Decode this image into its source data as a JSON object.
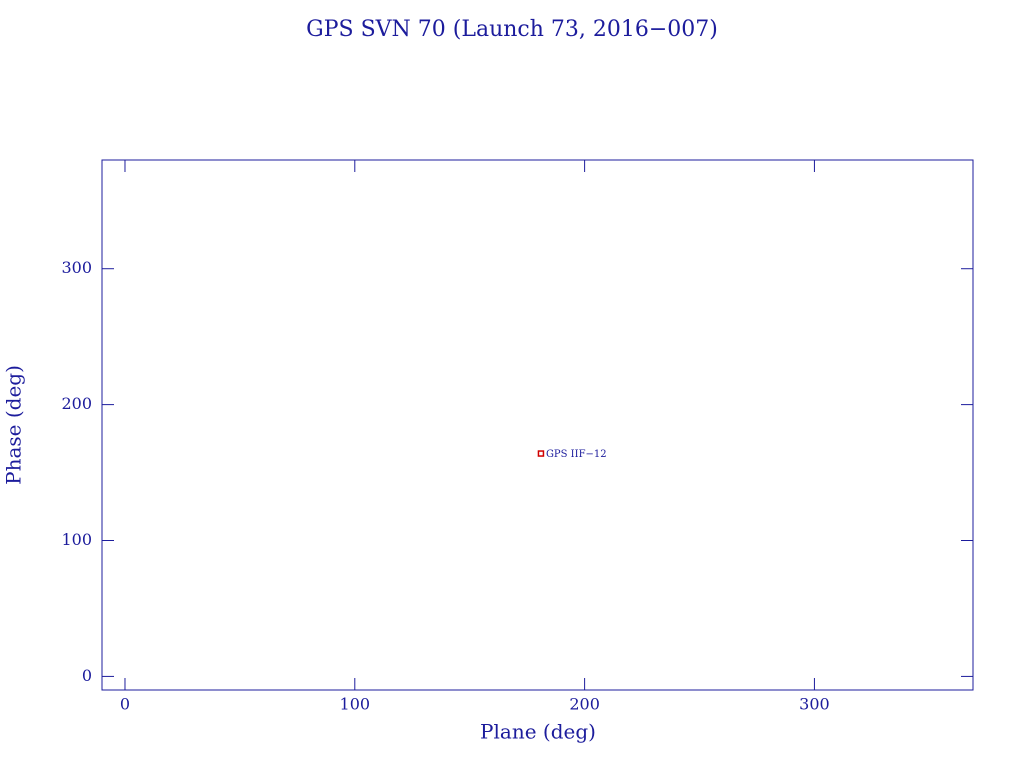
{
  "chart_data": {
    "type": "scatter",
    "title": "GPS SVN 70 (Launch 73, 2016−007)",
    "x_label": "Plane (deg)",
    "y_label": "Phase (deg)",
    "series": [
      {
        "color": "#d00000",
        "x": [
          181
        ],
        "values": [
          164
        ],
        "labels": [
          "GPS IIF−12"
        ]
      }
    ],
    "xlim": [
      -10,
      369
    ],
    "ylim": [
      -10,
      380
    ],
    "xticks": [
      0,
      100,
      200,
      300
    ],
    "yticks": [
      0,
      100,
      200,
      300
    ],
    "axis_color": "#1c1c9c"
  }
}
